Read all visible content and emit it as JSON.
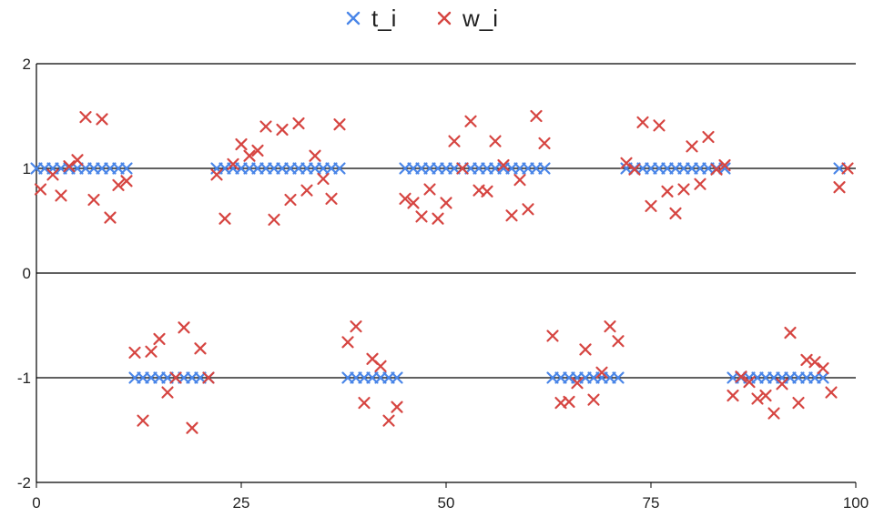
{
  "chart_data": {
    "type": "scatter",
    "xlim": [
      0,
      100
    ],
    "ylim": [
      -2,
      2
    ],
    "x_ticks": [
      "0",
      "25",
      "50",
      "75",
      "100"
    ],
    "y_ticks": [
      "2",
      "1",
      "0",
      "-1",
      "-2"
    ],
    "grid": "horizontal",
    "legend_position": "top-center",
    "series": [
      {
        "name": "t_i",
        "color": "#4a86e8",
        "marker": "x",
        "points": [
          [
            0,
            1
          ],
          [
            1,
            1
          ],
          [
            2,
            1
          ],
          [
            3,
            1
          ],
          [
            4,
            1
          ],
          [
            5,
            1
          ],
          [
            6,
            1
          ],
          [
            7,
            1
          ],
          [
            8,
            1
          ],
          [
            9,
            1
          ],
          [
            10,
            1
          ],
          [
            11,
            1
          ],
          [
            12,
            -1
          ],
          [
            13,
            -1
          ],
          [
            14,
            -1
          ],
          [
            15,
            -1
          ],
          [
            16,
            -1
          ],
          [
            17,
            -1
          ],
          [
            18,
            -1
          ],
          [
            19,
            -1
          ],
          [
            20,
            -1
          ],
          [
            21,
            -1
          ],
          [
            22,
            1
          ],
          [
            23,
            1
          ],
          [
            24,
            1
          ],
          [
            25,
            1
          ],
          [
            26,
            1
          ],
          [
            27,
            1
          ],
          [
            28,
            1
          ],
          [
            29,
            1
          ],
          [
            30,
            1
          ],
          [
            31,
            1
          ],
          [
            32,
            1
          ],
          [
            33,
            1
          ],
          [
            34,
            1
          ],
          [
            35,
            1
          ],
          [
            36,
            1
          ],
          [
            37,
            1
          ],
          [
            38,
            -1
          ],
          [
            39,
            -1
          ],
          [
            40,
            -1
          ],
          [
            41,
            -1
          ],
          [
            42,
            -1
          ],
          [
            43,
            -1
          ],
          [
            44,
            -1
          ],
          [
            45,
            1
          ],
          [
            46,
            1
          ],
          [
            47,
            1
          ],
          [
            48,
            1
          ],
          [
            49,
            1
          ],
          [
            50,
            1
          ],
          [
            51,
            1
          ],
          [
            52,
            1
          ],
          [
            53,
            1
          ],
          [
            54,
            1
          ],
          [
            55,
            1
          ],
          [
            56,
            1
          ],
          [
            57,
            1
          ],
          [
            58,
            1
          ],
          [
            59,
            1
          ],
          [
            60,
            1
          ],
          [
            61,
            1
          ],
          [
            62,
            1
          ],
          [
            63,
            -1
          ],
          [
            64,
            -1
          ],
          [
            65,
            -1
          ],
          [
            66,
            -1
          ],
          [
            67,
            -1
          ],
          [
            68,
            -1
          ],
          [
            69,
            -1
          ],
          [
            70,
            -1
          ],
          [
            71,
            -1
          ],
          [
            72,
            1
          ],
          [
            73,
            1
          ],
          [
            74,
            1
          ],
          [
            75,
            1
          ],
          [
            76,
            1
          ],
          [
            77,
            1
          ],
          [
            78,
            1
          ],
          [
            79,
            1
          ],
          [
            80,
            1
          ],
          [
            81,
            1
          ],
          [
            82,
            1
          ],
          [
            83,
            1
          ],
          [
            84,
            1
          ],
          [
            85,
            -1
          ],
          [
            86,
            -1
          ],
          [
            87,
            -1
          ],
          [
            88,
            -1
          ],
          [
            89,
            -1
          ],
          [
            90,
            -1
          ],
          [
            91,
            -1
          ],
          [
            92,
            -1
          ],
          [
            93,
            -1
          ],
          [
            94,
            -1
          ],
          [
            95,
            -1
          ],
          [
            96,
            -1
          ],
          [
            98,
            1
          ]
        ]
      },
      {
        "name": "w_i",
        "color": "#d64541",
        "marker": "x",
        "points": [
          [
            0.5,
            0.8
          ],
          [
            2,
            0.94
          ],
          [
            3,
            0.74
          ],
          [
            4,
            1.02
          ],
          [
            5,
            1.08
          ],
          [
            6,
            1.49
          ],
          [
            7,
            0.7
          ],
          [
            8,
            1.47
          ],
          [
            9,
            0.53
          ],
          [
            10,
            0.84
          ],
          [
            11,
            0.88
          ],
          [
            12,
            -0.76
          ],
          [
            13,
            -1.41
          ],
          [
            14,
            -0.75
          ],
          [
            15,
            -0.63
          ],
          [
            16,
            -1.14
          ],
          [
            17,
            -1.0
          ],
          [
            18,
            -0.52
          ],
          [
            19,
            -1.48
          ],
          [
            20,
            -0.72
          ],
          [
            21,
            -1.0
          ],
          [
            22,
            0.94
          ],
          [
            23,
            0.52
          ],
          [
            24,
            1.04
          ],
          [
            25,
            1.23
          ],
          [
            26,
            1.12
          ],
          [
            27,
            1.17
          ],
          [
            28,
            1.4
          ],
          [
            29,
            0.51
          ],
          [
            30,
            1.37
          ],
          [
            31,
            0.7
          ],
          [
            32,
            1.43
          ],
          [
            33,
            0.79
          ],
          [
            34,
            1.12
          ],
          [
            35,
            0.9
          ],
          [
            36,
            0.71
          ],
          [
            37,
            1.42
          ],
          [
            38,
            -0.66
          ],
          [
            39,
            -0.51
          ],
          [
            40,
            -1.24
          ],
          [
            41,
            -0.82
          ],
          [
            42,
            -0.89
          ],
          [
            43,
            -1.41
          ],
          [
            44,
            -1.28
          ],
          [
            45,
            0.71
          ],
          [
            46,
            0.67
          ],
          [
            47,
            0.54
          ],
          [
            48,
            0.8
          ],
          [
            49,
            0.52
          ],
          [
            50,
            0.67
          ],
          [
            51,
            1.26
          ],
          [
            52,
            1.0
          ],
          [
            53,
            1.45
          ],
          [
            54,
            0.79
          ],
          [
            55,
            0.78
          ],
          [
            56,
            1.26
          ],
          [
            57,
            1.03
          ],
          [
            58,
            0.55
          ],
          [
            59,
            0.89
          ],
          [
            60,
            0.61
          ],
          [
            61,
            1.5
          ],
          [
            62,
            1.24
          ],
          [
            63,
            -0.6
          ],
          [
            64,
            -1.24
          ],
          [
            65,
            -1.23
          ],
          [
            66,
            -1.05
          ],
          [
            67,
            -0.73
          ],
          [
            68,
            -1.21
          ],
          [
            69,
            -0.95
          ],
          [
            70,
            -0.51
          ],
          [
            71,
            -0.65
          ],
          [
            72,
            1.05
          ],
          [
            73,
            0.99
          ],
          [
            74,
            1.44
          ],
          [
            75,
            0.64
          ],
          [
            76,
            1.41
          ],
          [
            77,
            0.78
          ],
          [
            78,
            0.57
          ],
          [
            79,
            0.8
          ],
          [
            80,
            1.21
          ],
          [
            81,
            0.85
          ],
          [
            82,
            1.3
          ],
          [
            83,
            0.99
          ],
          [
            84,
            1.03
          ],
          [
            85,
            -1.17
          ],
          [
            86,
            -0.99
          ],
          [
            87,
            -1.04
          ],
          [
            88,
            -1.2
          ],
          [
            89,
            -1.17
          ],
          [
            90,
            -1.34
          ],
          [
            91,
            -1.06
          ],
          [
            92,
            -0.57
          ],
          [
            93,
            -1.24
          ],
          [
            94,
            -0.83
          ],
          [
            95,
            -0.85
          ],
          [
            96,
            -0.91
          ],
          [
            97,
            -1.14
          ],
          [
            98,
            0.82
          ],
          [
            99,
            1.0
          ]
        ]
      }
    ]
  }
}
